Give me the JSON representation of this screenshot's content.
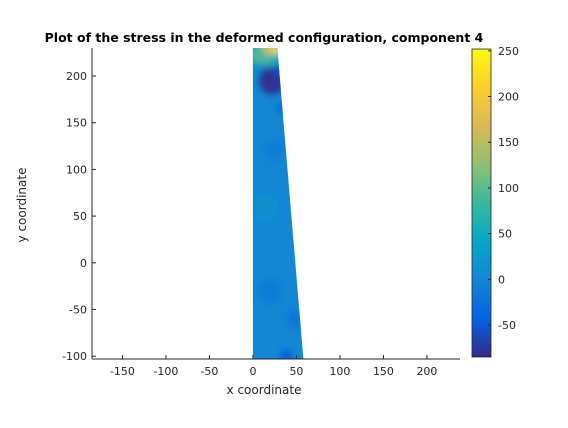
{
  "chart_data": {
    "type": "heatmap",
    "title": "Plot of the stress in the deformed configuration, component 4",
    "xlabel": "x coordinate",
    "ylabel": "y coordinate",
    "xlim": [
      -185,
      238
    ],
    "ylim": [
      -103,
      230
    ],
    "xticks": [
      -150,
      -100,
      -50,
      0,
      50,
      100,
      150,
      200
    ],
    "yticks": [
      -100,
      -50,
      0,
      50,
      100,
      150,
      200
    ],
    "colorbar": {
      "colormap": "parula",
      "range": [
        -85,
        252
      ],
      "ticks": [
        -50,
        0,
        50,
        100,
        150,
        200,
        250
      ]
    },
    "shape": {
      "vertices": [
        [
          0,
          -103
        ],
        [
          58,
          -103
        ],
        [
          28,
          230
        ],
        [
          0,
          230
        ]
      ],
      "background_value": 2
    },
    "hotspots": [
      {
        "x": 22,
        "y": 226,
        "value": 240,
        "r": 9
      },
      {
        "x": 13,
        "y": 225,
        "value": 170,
        "r": 11
      },
      {
        "x": 6,
        "y": 222,
        "value": 90,
        "r": 10
      },
      {
        "x": 24,
        "y": 215,
        "value": 55,
        "r": 9
      },
      {
        "x": 22,
        "y": 195,
        "value": -80,
        "r": 15
      },
      {
        "x": 30,
        "y": 205,
        "value": -60,
        "r": 7
      },
      {
        "x": 33,
        "y": 165,
        "value": -35,
        "r": 6
      },
      {
        "x": 38,
        "y": -100,
        "value": -45,
        "r": 7
      },
      {
        "x": 48,
        "y": -60,
        "value": -18,
        "r": 10
      },
      {
        "x": 20,
        "y": -30,
        "value": -12,
        "r": 14
      },
      {
        "x": 15,
        "y": 60,
        "value": 14,
        "r": 14
      },
      {
        "x": 25,
        "y": 120,
        "value": -10,
        "r": 12
      }
    ],
    "grid": false
  }
}
